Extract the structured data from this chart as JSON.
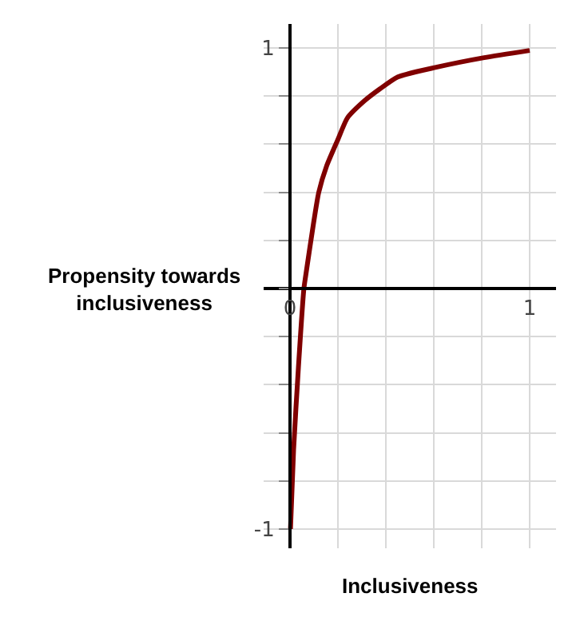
{
  "chart_data": {
    "type": "line",
    "xlabel": "Inclusiveness",
    "ylabel": "Propensity towards inclusiveness",
    "x": [
      0.002,
      0.015,
      0.035,
      0.058,
      0.065,
      0.098,
      0.12,
      0.153,
      0.2,
      0.24,
      0.31,
      0.375,
      0.45,
      0.61,
      0.81,
      1.0
    ],
    "series": [
      {
        "color": "#800000",
        "values": [
          -1.0,
          -0.67,
          -0.33,
          0.0,
          0.05,
          0.27,
          0.4,
          0.51,
          0.62,
          0.71,
          0.78,
          0.83,
          0.88,
          0.92,
          0.96,
          0.99
        ]
      }
    ],
    "xlim": [
      -0.11,
      1.11
    ],
    "ylim": [
      -1.08,
      1.1
    ],
    "xticks": [
      0,
      {
        "value": 0.2,
        "label": null
      },
      {
        "value": 0.4,
        "label": null
      },
      {
        "value": 0.6,
        "label": null
      },
      {
        "value": 0.8,
        "label": null
      },
      1
    ],
    "yticks": [
      -1,
      {
        "value": -0.8,
        "label": null
      },
      {
        "value": -0.6,
        "label": null
      },
      {
        "value": -0.4,
        "label": null
      },
      {
        "value": -0.2,
        "label": null
      },
      {
        "value": 0,
        "label": null
      },
      {
        "value": 0.2,
        "label": null
      },
      {
        "value": 0.4,
        "label": null
      },
      {
        "value": 0.6,
        "label": null
      },
      {
        "value": 0.8,
        "label": null
      },
      1
    ],
    "grid": true,
    "marker": "none",
    "line_style": "solid"
  }
}
